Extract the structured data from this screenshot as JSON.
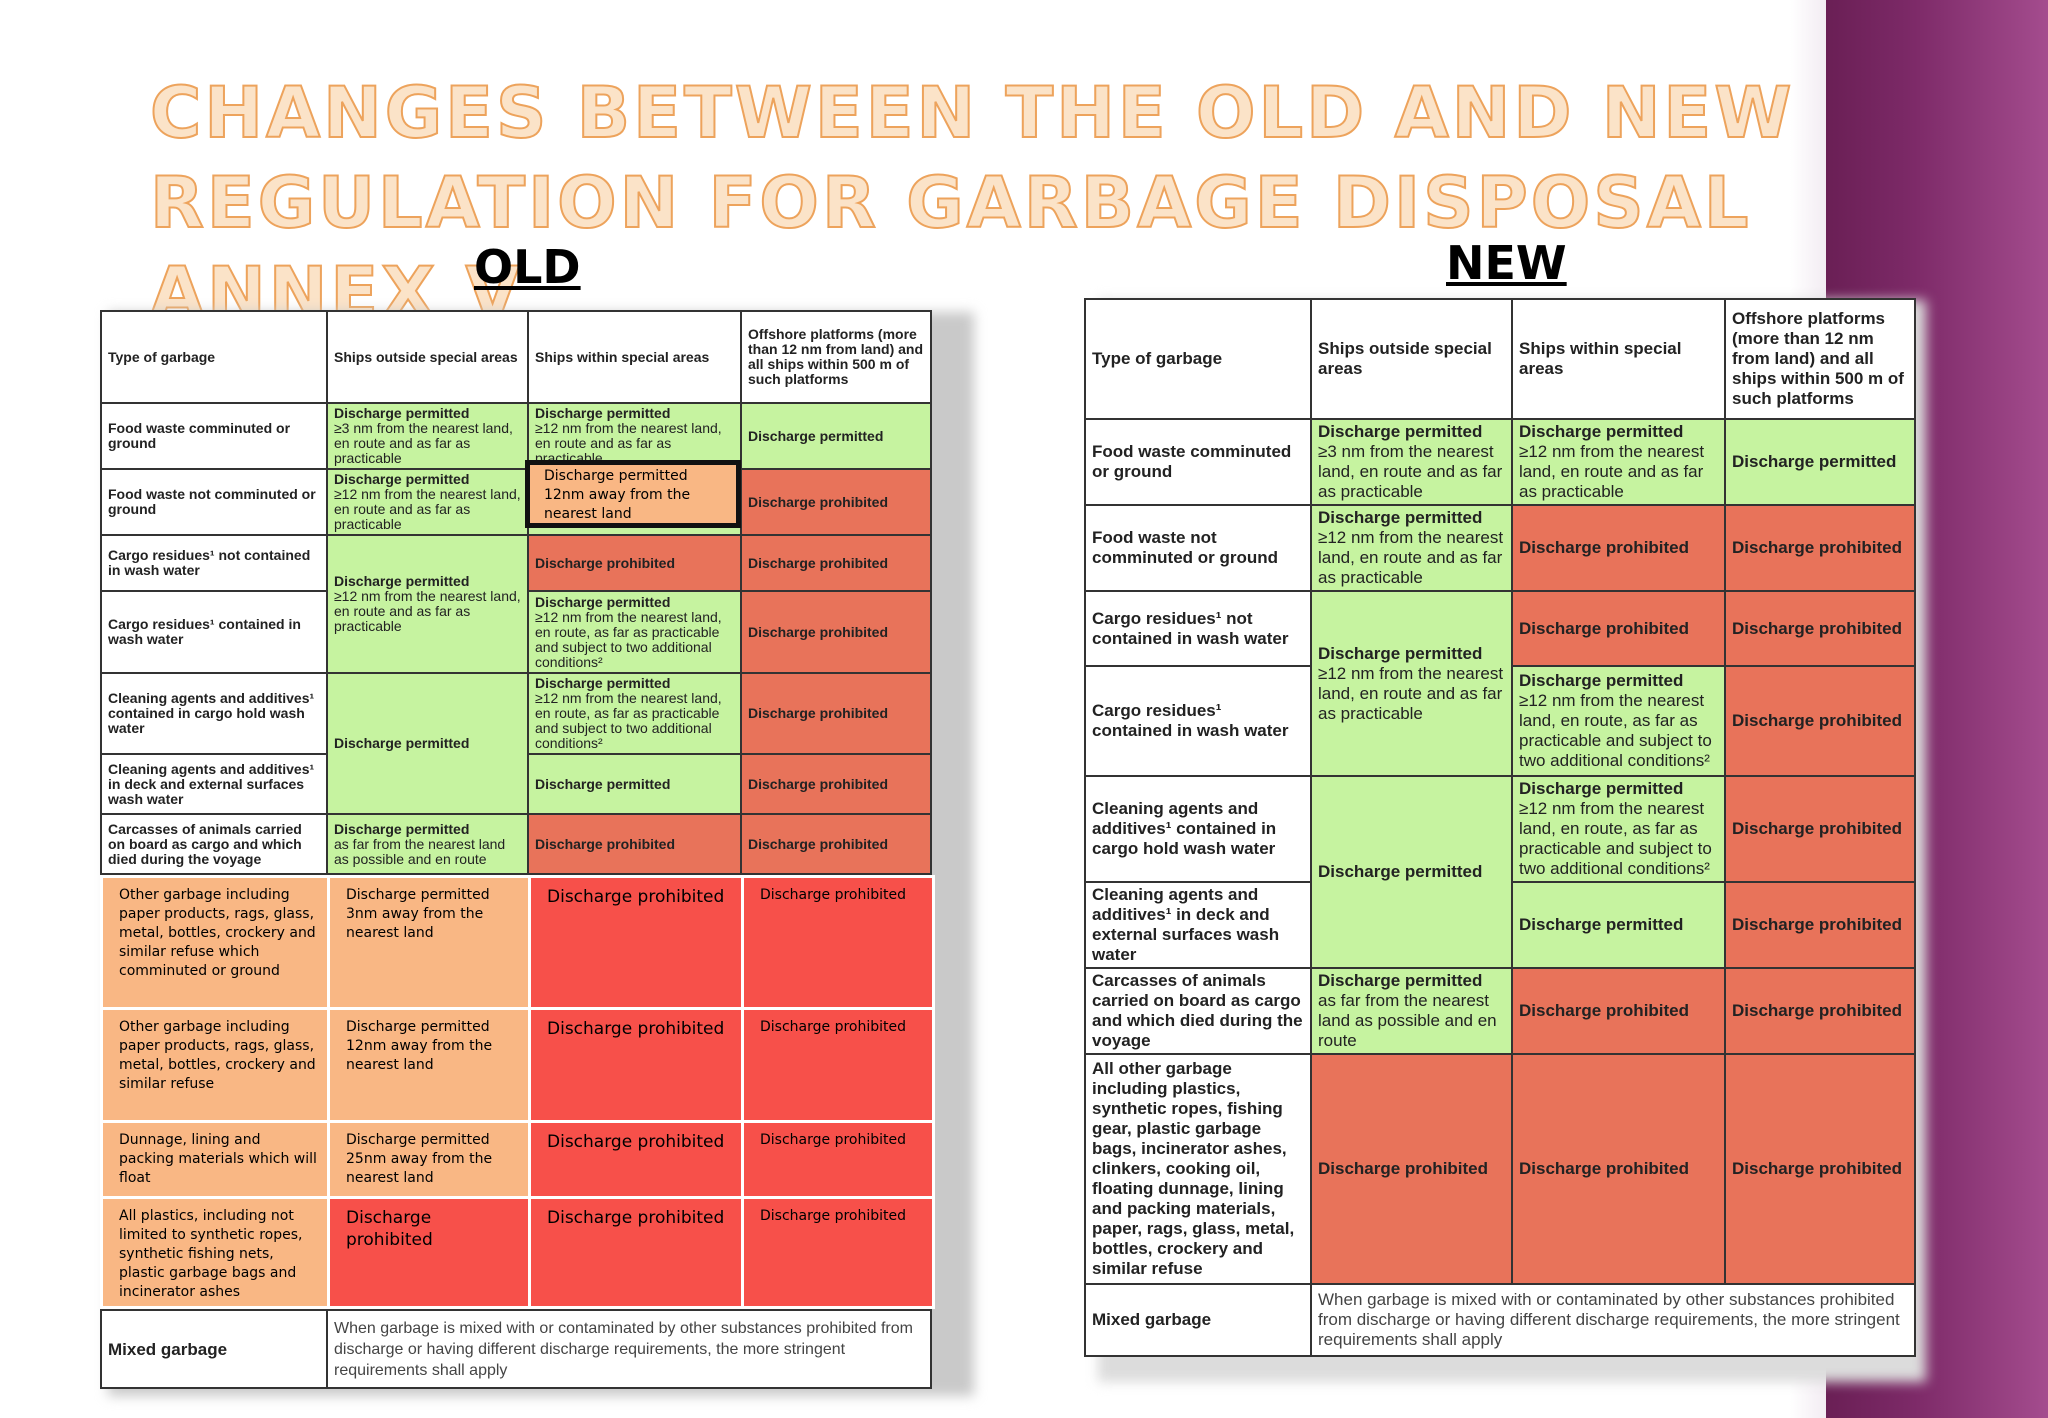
{
  "title": "Changes between the old and new regulation for garbage disposal Annex V",
  "old_label": "OLD",
  "new_label": "NEW",
  "headers": {
    "type": "Type of garbage",
    "outside": "Ships outside special areas",
    "within": "Ships within special areas",
    "offshore": "Offshore platforms (more than 12 nm from land) and all ships within 500 m of such platforms"
  },
  "common": {
    "permitted": "Discharge permitted",
    "prohibited": "Discharge prohibited",
    "mixed_label": "Mixed garbage",
    "mixed_text": "When garbage is mixed with or contaminated by other substances prohibited from discharge or having different discharge requirements, the more stringent requirements shall apply"
  },
  "old": {
    "rows": {
      "food_comminuted": "Food waste comminuted or ground",
      "food_not": "Food waste not comminuted or ground",
      "cargo_not": "Cargo residues¹ not contained in wash water",
      "cargo_in": "Cargo residues¹ contained in wash water",
      "clean_hold": "Cleaning agents and additives¹ contained in cargo hold wash water",
      "clean_deck": "Cleaning agents and additives¹ in deck and external surfaces wash water",
      "carcass": "Carcasses of animals carried on board as cargo and which died during the voyage"
    },
    "cells": {
      "fc_out": "≥3 nm from the nearest land, en route and as far as practicable",
      "fc_in": "≥12 nm from the nearest land, en route and as far as practicable",
      "fn_out": "≥12 nm from the nearest land, en route and as far as practicable",
      "fn_in_highlight": "Discharge permitted 12nm away from the nearest land",
      "cargo_out": "≥12 nm from the nearest land, en route and as far as practicable",
      "cargo_in_in": "≥12 nm from the nearest land, en route, as far as practicable and subject to two additional conditions²",
      "clean_hold_in": "≥12 nm from the nearest land, en route, as far as practicable and subject to two additional conditions²",
      "carcass_out": "as far from the nearest land as possible and en route"
    },
    "overlay": [
      {
        "type": "Other garbage including paper products, rags, glass, metal, bottles, crockery and similar refuse which comminuted or ground",
        "outside": "Discharge permitted 3nm away from the nearest land",
        "within": "Discharge prohibited",
        "offshore": "Discharge prohibited"
      },
      {
        "type": "Other garbage including paper products, rags, glass, metal, bottles, crockery and similar refuse",
        "outside": "Discharge permitted 12nm away from the nearest land",
        "within": "Discharge prohibited",
        "offshore": "Discharge prohibited"
      },
      {
        "type": "Dunnage, lining and packing materials which will float",
        "outside": "Discharge permitted 25nm away from the nearest land",
        "within": "Discharge prohibited",
        "offshore": "Discharge prohibited"
      },
      {
        "type": "All plastics, including not limited to synthetic ropes, synthetic fishing nets, plastic garbage bags and incinerator ashes",
        "outside": "Discharge prohibited",
        "within": "Discharge prohibited",
        "offshore": "Discharge prohibited"
      }
    ]
  },
  "new": {
    "rows": {
      "food_comminuted": "Food waste comminuted or ground",
      "food_not": "Food waste not comminuted or ground",
      "cargo_not": "Cargo residues¹ not contained in wash water",
      "cargo_in": "Cargo residues¹ contained in wash water",
      "clean_hold": "Cleaning agents and additives¹ contained in cargo hold wash water",
      "clean_deck": "Cleaning agents and additives¹ in deck and external surfaces wash water",
      "carcass": "Carcasses of animals carried on board as cargo and which died during the voyage",
      "all_other": "All other garbage including plastics, synthetic ropes, fishing gear, plastic garbage bags, incinerator ashes, clinkers, cooking oil, floating dunnage, lining and packing materials, paper, rags, glass, metal, bottles, crockery and similar refuse"
    },
    "cells": {
      "fc_out": "≥3 nm from the nearest land, en route and as far as practicable",
      "fc_in": "≥12 nm from the nearest land, en route and as far as practicable",
      "fn_out": "≥12 nm from the nearest land, en route and as far as practicable",
      "cargo_out": "≥12 nm from the nearest land, en route and as far as practicable",
      "cargo_in_in": "≥12 nm from the nearest land, en route, as far as practicable and subject to two additional conditions²",
      "clean_hold_in": "≥12 nm from the nearest land, en route, as far as practicable and subject to two additional conditions²",
      "carcass_out": "as far from the nearest land as possible and en route"
    }
  }
}
